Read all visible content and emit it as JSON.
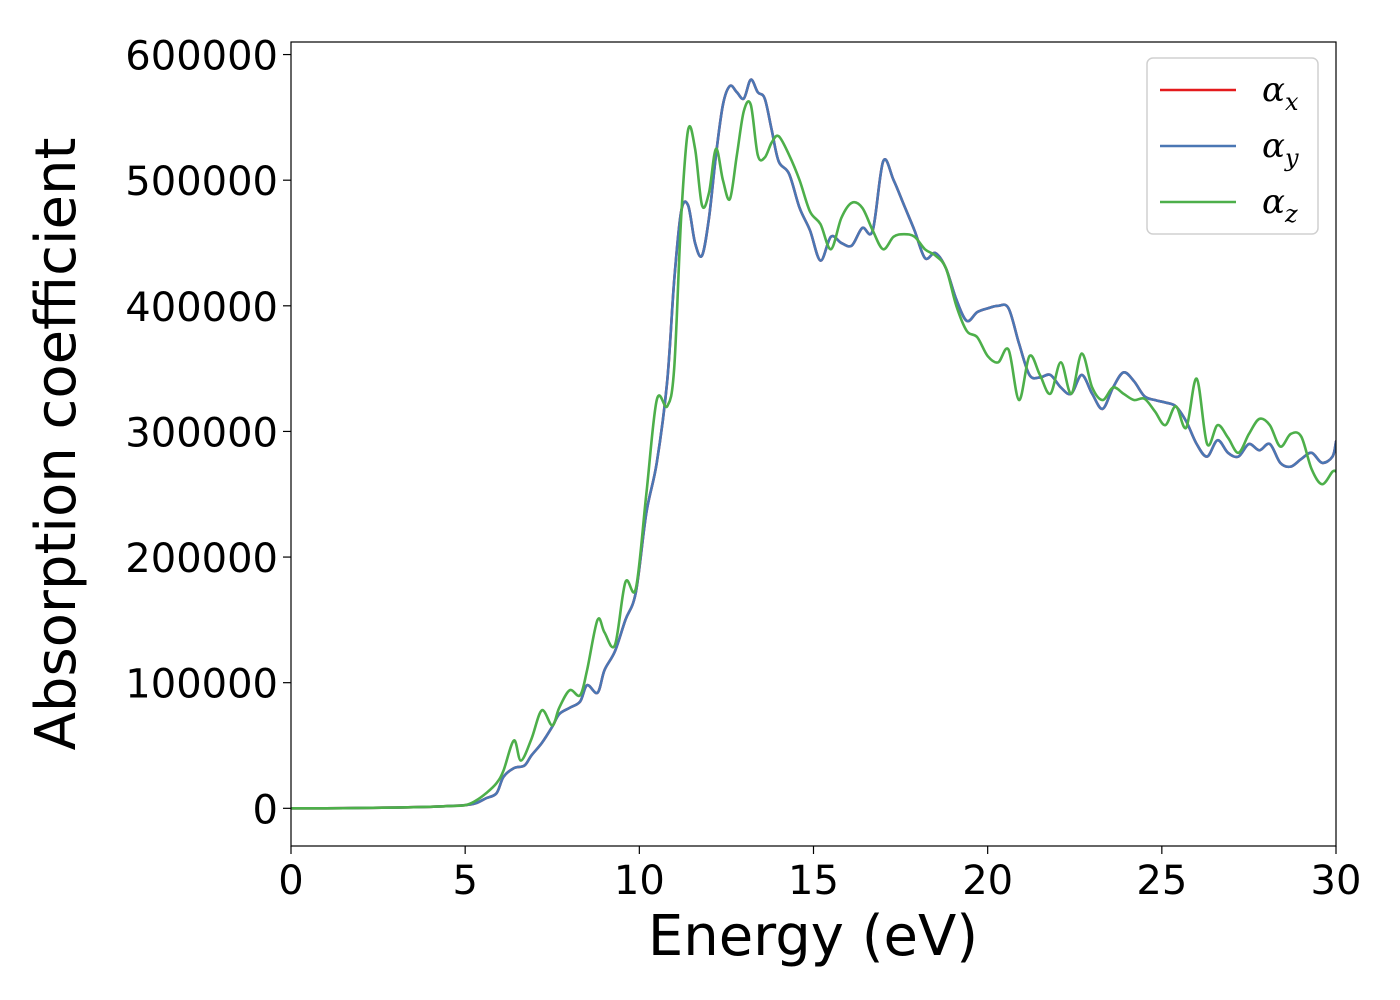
{
  "chart_data": {
    "type": "line",
    "xlabel": "Energy (eV)",
    "ylabel": "Absorption coefficient",
    "xlim": [
      0,
      30
    ],
    "ylim": [
      -30000,
      610000
    ],
    "x_ticks": [
      0,
      5,
      10,
      15,
      20,
      25,
      30
    ],
    "x_tick_labels": [
      "0",
      "5",
      "10",
      "15",
      "20",
      "25",
      "30"
    ],
    "y_ticks": [
      0,
      100000,
      200000,
      300000,
      400000,
      500000,
      600000
    ],
    "y_tick_labels": [
      "0",
      "100000",
      "200000",
      "300000",
      "400000",
      "500000",
      "600000"
    ],
    "grid": false,
    "legend_position": "top-right",
    "series": [
      {
        "name": "αx",
        "legend_base": "α",
        "legend_sub": "x",
        "color": "#e41a1c",
        "x": [
          0,
          1,
          2,
          3,
          4,
          4.5,
          5,
          5.3,
          5.6,
          5.9,
          6.1,
          6.4,
          6.7,
          6.9,
          7.2,
          7.5,
          7.7,
          8.0,
          8.3,
          8.5,
          8.8,
          9.0,
          9.3,
          9.6,
          9.9,
          10.2,
          10.5,
          10.8,
          11.0,
          11.2,
          11.4,
          11.6,
          11.8,
          12.0,
          12.2,
          12.4,
          12.6,
          12.8,
          13.0,
          13.2,
          13.4,
          13.6,
          13.8,
          14.0,
          14.3,
          14.6,
          14.9,
          15.2,
          15.5,
          15.8,
          16.1,
          16.4,
          16.7,
          17.0,
          17.3,
          17.6,
          17.9,
          18.2,
          18.5,
          18.8,
          19.1,
          19.4,
          19.7,
          20.0,
          20.3,
          20.6,
          20.9,
          21.2,
          21.5,
          21.8,
          22.1,
          22.4,
          22.7,
          23.0,
          23.3,
          23.6,
          23.9,
          24.2,
          24.5,
          24.8,
          25.1,
          25.4,
          25.7,
          26.0,
          26.3,
          26.6,
          26.9,
          27.2,
          27.5,
          27.8,
          28.1,
          28.4,
          28.7,
          29.0,
          29.3,
          29.6,
          29.9,
          30
        ],
        "values": [
          0,
          0,
          300,
          600,
          1200,
          1800,
          2500,
          4000,
          8000,
          12000,
          25000,
          32000,
          34000,
          42000,
          52000,
          65000,
          75000,
          80000,
          85000,
          98000,
          92000,
          110000,
          125000,
          150000,
          172000,
          235000,
          275000,
          340000,
          420000,
          475000,
          480000,
          450000,
          440000,
          470000,
          520000,
          560000,
          575000,
          570000,
          565000,
          580000,
          570000,
          565000,
          540000,
          515000,
          505000,
          478000,
          460000,
          436000,
          455000,
          450000,
          448000,
          462000,
          460000,
          515000,
          500000,
          480000,
          460000,
          438000,
          442000,
          430000,
          405000,
          388000,
          395000,
          398000,
          400000,
          398000,
          370000,
          345000,
          343000,
          345000,
          335000,
          330000,
          345000,
          330000,
          318000,
          335000,
          347000,
          340000,
          328000,
          325000,
          323000,
          320000,
          308000,
          290000,
          280000,
          293000,
          283000,
          280000,
          290000,
          285000,
          290000,
          275000,
          272000,
          278000,
          283000,
          275000,
          280000,
          292000
        ]
      },
      {
        "name": "αy",
        "legend_base": "α",
        "legend_sub": "y",
        "color": "#4a77b4",
        "x": [
          0,
          1,
          2,
          3,
          4,
          4.5,
          5,
          5.3,
          5.6,
          5.9,
          6.1,
          6.4,
          6.7,
          6.9,
          7.2,
          7.5,
          7.7,
          8.0,
          8.3,
          8.5,
          8.8,
          9.0,
          9.3,
          9.6,
          9.9,
          10.2,
          10.5,
          10.8,
          11.0,
          11.2,
          11.4,
          11.6,
          11.8,
          12.0,
          12.2,
          12.4,
          12.6,
          12.8,
          13.0,
          13.2,
          13.4,
          13.6,
          13.8,
          14.0,
          14.3,
          14.6,
          14.9,
          15.2,
          15.5,
          15.8,
          16.1,
          16.4,
          16.7,
          17.0,
          17.3,
          17.6,
          17.9,
          18.2,
          18.5,
          18.8,
          19.1,
          19.4,
          19.7,
          20.0,
          20.3,
          20.6,
          20.9,
          21.2,
          21.5,
          21.8,
          22.1,
          22.4,
          22.7,
          23.0,
          23.3,
          23.6,
          23.9,
          24.2,
          24.5,
          24.8,
          25.1,
          25.4,
          25.7,
          26.0,
          26.3,
          26.6,
          26.9,
          27.2,
          27.5,
          27.8,
          28.1,
          28.4,
          28.7,
          29.0,
          29.3,
          29.6,
          29.9,
          30
        ],
        "values": [
          0,
          0,
          300,
          600,
          1200,
          1800,
          2500,
          4000,
          8000,
          12000,
          25000,
          32000,
          34000,
          42000,
          52000,
          65000,
          75000,
          80000,
          85000,
          98000,
          92000,
          110000,
          125000,
          150000,
          172000,
          235000,
          275000,
          340000,
          420000,
          475000,
          480000,
          450000,
          440000,
          470000,
          520000,
          560000,
          575000,
          570000,
          565000,
          580000,
          570000,
          565000,
          540000,
          515000,
          505000,
          478000,
          460000,
          436000,
          455000,
          450000,
          448000,
          462000,
          460000,
          515000,
          500000,
          480000,
          460000,
          438000,
          442000,
          430000,
          405000,
          388000,
          395000,
          398000,
          400000,
          398000,
          370000,
          345000,
          343000,
          345000,
          335000,
          330000,
          345000,
          330000,
          318000,
          335000,
          347000,
          340000,
          328000,
          325000,
          323000,
          320000,
          308000,
          290000,
          280000,
          293000,
          283000,
          280000,
          290000,
          285000,
          290000,
          275000,
          272000,
          278000,
          283000,
          275000,
          280000,
          292000
        ]
      },
      {
        "name": "αz",
        "legend_base": "α",
        "legend_sub": "z",
        "color": "#4daf4a",
        "x": [
          0,
          1,
          2,
          3,
          4,
          4.5,
          5,
          5.3,
          5.6,
          5.9,
          6.1,
          6.4,
          6.6,
          6.9,
          7.2,
          7.5,
          7.7,
          8.0,
          8.3,
          8.5,
          8.8,
          9.0,
          9.3,
          9.6,
          9.9,
          10.2,
          10.5,
          10.8,
          11.0,
          11.2,
          11.4,
          11.6,
          11.8,
          12.0,
          12.2,
          12.4,
          12.6,
          12.8,
          13.0,
          13.2,
          13.4,
          13.6,
          13.8,
          14.0,
          14.3,
          14.6,
          14.9,
          15.2,
          15.5,
          15.8,
          16.1,
          16.4,
          16.7,
          17.0,
          17.3,
          17.6,
          17.9,
          18.2,
          18.5,
          18.8,
          19.1,
          19.4,
          19.7,
          20.0,
          20.3,
          20.6,
          20.9,
          21.2,
          21.5,
          21.8,
          22.1,
          22.4,
          22.7,
          23.0,
          23.3,
          23.6,
          23.9,
          24.2,
          24.5,
          24.8,
          25.1,
          25.4,
          25.7,
          26.0,
          26.3,
          26.6,
          26.9,
          27.2,
          27.5,
          27.8,
          28.1,
          28.4,
          28.7,
          29.0,
          29.3,
          29.6,
          29.9,
          30
        ],
        "values": [
          0,
          0,
          300,
          600,
          1200,
          1800,
          2500,
          6000,
          12000,
          20000,
          30000,
          54000,
          38000,
          55000,
          78000,
          66000,
          80000,
          94000,
          90000,
          110000,
          150000,
          140000,
          130000,
          180000,
          175000,
          250000,
          325000,
          320000,
          350000,
          470000,
          540000,
          525000,
          480000,
          490000,
          525000,
          500000,
          485000,
          520000,
          555000,
          560000,
          520000,
          518000,
          530000,
          535000,
          520000,
          500000,
          475000,
          465000,
          445000,
          470000,
          482000,
          478000,
          460000,
          445000,
          455000,
          457000,
          455000,
          445000,
          440000,
          430000,
          400000,
          380000,
          375000,
          360000,
          355000,
          365000,
          325000,
          360000,
          345000,
          330000,
          355000,
          330000,
          362000,
          335000,
          325000,
          335000,
          330000,
          325000,
          326000,
          316000,
          305000,
          320000,
          303000,
          342000,
          290000,
          305000,
          295000,
          283000,
          298000,
          310000,
          305000,
          288000,
          298000,
          296000,
          270000,
          258000,
          268000,
          268000
        ]
      }
    ]
  }
}
